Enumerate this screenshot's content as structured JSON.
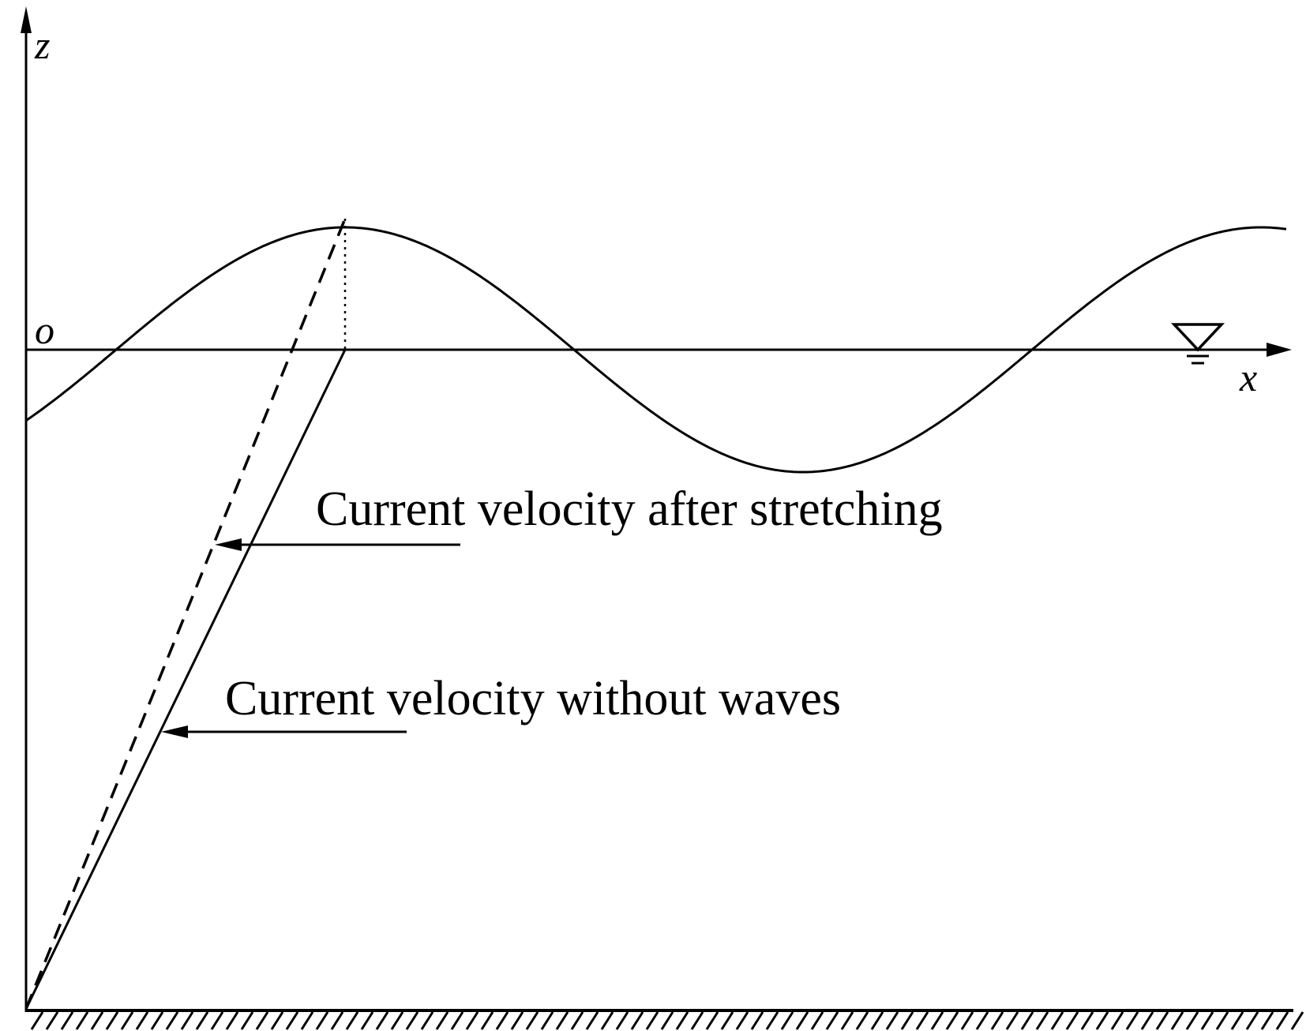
{
  "diagram": {
    "axis_labels": {
      "z": "z",
      "x": "x",
      "origin": "o"
    },
    "annotations": {
      "stretched_current": "Current velocity after stretching",
      "current_without_waves": "Current velocity without waves"
    },
    "symbols": {
      "still_water_level": "still-water-level-triangle",
      "seabed": "hatched-seabed"
    },
    "colors": {
      "line": "#000000",
      "background": "#ffffff"
    }
  }
}
